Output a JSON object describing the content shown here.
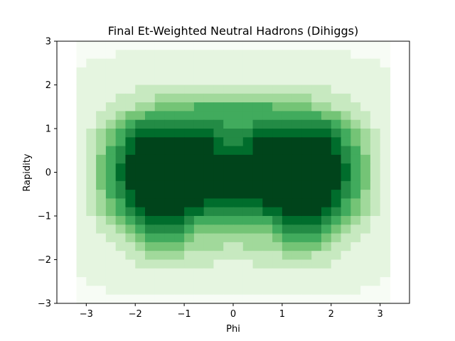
{
  "chart_data": {
    "type": "heatmap",
    "title": "Final Et-Weighted Neutral Hadrons (Dihiggs)",
    "xlabel": "Phi",
    "ylabel": "Rapidity",
    "xlim": [
      -3.6,
      3.6
    ],
    "ylim": [
      -3,
      3
    ],
    "x_ticks": [
      -3,
      -2,
      -1,
      0,
      1,
      2,
      3
    ],
    "y_ticks": [
      -3,
      -2,
      -1,
      0,
      1,
      2,
      3
    ],
    "x_edges_range": [
      -3.2,
      3.2
    ],
    "x_bins": 32,
    "y_bins": 30,
    "colormap": "Greens",
    "colors": {
      "low": "#f7fcf5",
      "high": "#00441b"
    },
    "grid": false,
    "values": [
      [
        0,
        0,
        0,
        0,
        0,
        0,
        0,
        0,
        0,
        0,
        0,
        0,
        0,
        0,
        0,
        0,
        0,
        0,
        0,
        0,
        0,
        0,
        0,
        0,
        0,
        0,
        0,
        0,
        0,
        0,
        0,
        0
      ],
      [
        0,
        0,
        0,
        0,
        1,
        1,
        1,
        1,
        1,
        1,
        1,
        1,
        1,
        1,
        1,
        1,
        1,
        1,
        1,
        1,
        1,
        1,
        1,
        1,
        1,
        1,
        1,
        1,
        0,
        0,
        0,
        0
      ],
      [
        0,
        1,
        1,
        1,
        1,
        1,
        1,
        1,
        1,
        1,
        1,
        1,
        1,
        1,
        1,
        1,
        1,
        1,
        1,
        1,
        1,
        1,
        1,
        1,
        1,
        1,
        1,
        1,
        1,
        1,
        1,
        0
      ],
      [
        1,
        1,
        1,
        1,
        1,
        1,
        1,
        1,
        1,
        1,
        1,
        1,
        1,
        1,
        1,
        1,
        1,
        1,
        1,
        1,
        1,
        1,
        1,
        1,
        1,
        1,
        1,
        1,
        1,
        1,
        1,
        1
      ],
      [
        1,
        1,
        1,
        1,
        1,
        1,
        1,
        1,
        1,
        1,
        1,
        1,
        1,
        1,
        1,
        1,
        1,
        1,
        1,
        1,
        1,
        1,
        1,
        1,
        1,
        1,
        1,
        1,
        1,
        1,
        1,
        1
      ],
      [
        1,
        1,
        1,
        1,
        1,
        1,
        2,
        2,
        2,
        2,
        2,
        2,
        2,
        2,
        2,
        2,
        2,
        2,
        2,
        2,
        2,
        2,
        2,
        2,
        2,
        2,
        1,
        1,
        1,
        1,
        1,
        1
      ],
      [
        1,
        1,
        1,
        1,
        2,
        2,
        2,
        2,
        3,
        3,
        3,
        3,
        3,
        3,
        3,
        3,
        3,
        3,
        3,
        3,
        3,
        3,
        3,
        3,
        2,
        2,
        2,
        2,
        1,
        1,
        1,
        1
      ],
      [
        1,
        1,
        1,
        2,
        2,
        2,
        3,
        3,
        4,
        4,
        4,
        4,
        5,
        5,
        5,
        5,
        5,
        5,
        5,
        5,
        4,
        4,
        4,
        4,
        3,
        3,
        2,
        2,
        2,
        1,
        1,
        1
      ],
      [
        1,
        1,
        2,
        2,
        3,
        4,
        4,
        5,
        5,
        5,
        5,
        5,
        5,
        5,
        5,
        5,
        5,
        5,
        5,
        5,
        5,
        5,
        5,
        5,
        5,
        4,
        4,
        3,
        2,
        2,
        1,
        1
      ],
      [
        1,
        1,
        2,
        3,
        4,
        5,
        6,
        6,
        6,
        6,
        6,
        6,
        6,
        6,
        6,
        5,
        5,
        5,
        6,
        6,
        6,
        6,
        6,
        6,
        6,
        6,
        5,
        4,
        3,
        2,
        1,
        1
      ],
      [
        1,
        2,
        3,
        4,
        5,
        6,
        7,
        7,
        7,
        7,
        7,
        7,
        7,
        7,
        6,
        6,
        6,
        6,
        7,
        7,
        7,
        7,
        7,
        7,
        7,
        7,
        6,
        5,
        4,
        3,
        2,
        1
      ],
      [
        1,
        2,
        3,
        4,
        5,
        7,
        8,
        8,
        8,
        8,
        8,
        8,
        8,
        8,
        7,
        6,
        6,
        7,
        8,
        8,
        8,
        8,
        8,
        8,
        8,
        8,
        7,
        5,
        4,
        3,
        2,
        1
      ],
      [
        1,
        2,
        3,
        5,
        6,
        7,
        8,
        8,
        8,
        8,
        8,
        8,
        8,
        8,
        7,
        7,
        7,
        7,
        8,
        8,
        8,
        8,
        8,
        8,
        8,
        8,
        7,
        6,
        5,
        3,
        2,
        1
      ],
      [
        1,
        2,
        4,
        5,
        6,
        8,
        8,
        8,
        8,
        8,
        8,
        8,
        8,
        8,
        8,
        8,
        8,
        8,
        8,
        8,
        8,
        8,
        8,
        8,
        8,
        8,
        8,
        6,
        5,
        4,
        2,
        1
      ],
      [
        1,
        2,
        4,
        5,
        7,
        8,
        8,
        8,
        8,
        8,
        8,
        8,
        8,
        8,
        8,
        8,
        8,
        8,
        8,
        8,
        8,
        8,
        8,
        8,
        8,
        8,
        8,
        7,
        5,
        4,
        2,
        1
      ],
      [
        1,
        2,
        4,
        5,
        7,
        8,
        8,
        8,
        8,
        8,
        8,
        8,
        8,
        8,
        8,
        8,
        8,
        8,
        8,
        8,
        8,
        8,
        8,
        8,
        8,
        8,
        8,
        7,
        5,
        4,
        2,
        1
      ],
      [
        1,
        2,
        4,
        5,
        6,
        8,
        8,
        8,
        8,
        8,
        8,
        8,
        8,
        8,
        8,
        8,
        8,
        8,
        8,
        8,
        8,
        8,
        8,
        8,
        8,
        8,
        8,
        6,
        5,
        4,
        2,
        1
      ],
      [
        1,
        2,
        3,
        5,
        6,
        7,
        8,
        8,
        8,
        8,
        8,
        8,
        8,
        8,
        8,
        8,
        8,
        8,
        8,
        8,
        8,
        8,
        8,
        8,
        8,
        8,
        7,
        6,
        5,
        3,
        2,
        1
      ],
      [
        1,
        2,
        3,
        4,
        5,
        7,
        8,
        8,
        8,
        8,
        8,
        8,
        8,
        7,
        7,
        7,
        7,
        7,
        7,
        8,
        8,
        8,
        8,
        8,
        8,
        8,
        7,
        5,
        4,
        3,
        2,
        1
      ],
      [
        1,
        2,
        3,
        4,
        5,
        6,
        7,
        8,
        8,
        8,
        8,
        7,
        7,
        6,
        6,
        6,
        6,
        6,
        6,
        7,
        7,
        8,
        8,
        8,
        8,
        7,
        6,
        5,
        4,
        3,
        2,
        1
      ],
      [
        1,
        1,
        2,
        3,
        4,
        5,
        6,
        7,
        7,
        7,
        7,
        6,
        5,
        5,
        5,
        5,
        5,
        5,
        5,
        5,
        6,
        7,
        7,
        7,
        7,
        6,
        5,
        4,
        3,
        2,
        1,
        1
      ],
      [
        1,
        1,
        2,
        2,
        3,
        4,
        5,
        6,
        6,
        6,
        6,
        5,
        4,
        4,
        4,
        4,
        4,
        4,
        4,
        4,
        5,
        6,
        6,
        6,
        6,
        5,
        4,
        3,
        2,
        2,
        1,
        1
      ],
      [
        1,
        1,
        1,
        2,
        2,
        3,
        4,
        5,
        5,
        5,
        5,
        4,
        3,
        3,
        3,
        3,
        3,
        3,
        3,
        3,
        4,
        5,
        5,
        5,
        5,
        4,
        3,
        2,
        2,
        1,
        1,
        1
      ],
      [
        1,
        1,
        1,
        1,
        2,
        2,
        3,
        4,
        4,
        4,
        4,
        3,
        3,
        3,
        3,
        2,
        2,
        3,
        3,
        3,
        3,
        4,
        4,
        4,
        4,
        3,
        2,
        2,
        1,
        1,
        1,
        1
      ],
      [
        1,
        1,
        1,
        1,
        1,
        2,
        2,
        3,
        3,
        3,
        3,
        2,
        2,
        2,
        2,
        2,
        2,
        2,
        2,
        2,
        2,
        3,
        3,
        3,
        2,
        2,
        2,
        1,
        1,
        1,
        1,
        1
      ],
      [
        1,
        1,
        1,
        1,
        1,
        1,
        2,
        2,
        2,
        2,
        2,
        2,
        2,
        2,
        1,
        1,
        1,
        1,
        2,
        2,
        2,
        2,
        2,
        2,
        2,
        2,
        1,
        1,
        1,
        1,
        1,
        1
      ],
      [
        1,
        1,
        1,
        1,
        1,
        1,
        1,
        1,
        1,
        1,
        1,
        1,
        1,
        1,
        1,
        1,
        1,
        1,
        1,
        1,
        1,
        1,
        1,
        1,
        1,
        1,
        1,
        1,
        1,
        1,
        1,
        1
      ],
      [
        0,
        1,
        1,
        1,
        1,
        1,
        1,
        1,
        1,
        1,
        1,
        1,
        1,
        1,
        1,
        1,
        1,
        1,
        1,
        1,
        1,
        1,
        1,
        1,
        1,
        1,
        1,
        1,
        1,
        1,
        1,
        0
      ],
      [
        0,
        0,
        0,
        1,
        1,
        1,
        1,
        1,
        1,
        1,
        1,
        1,
        1,
        1,
        1,
        1,
        1,
        1,
        1,
        1,
        1,
        1,
        1,
        1,
        1,
        1,
        1,
        1,
        1,
        0,
        0,
        0
      ],
      [
        0,
        0,
        0,
        0,
        0,
        0,
        0,
        0,
        0,
        0,
        0,
        0,
        0,
        0,
        0,
        0,
        0,
        0,
        0,
        0,
        0,
        0,
        0,
        0,
        0,
        0,
        0,
        0,
        0,
        0,
        0,
        0
      ]
    ],
    "value_max": 8
  }
}
